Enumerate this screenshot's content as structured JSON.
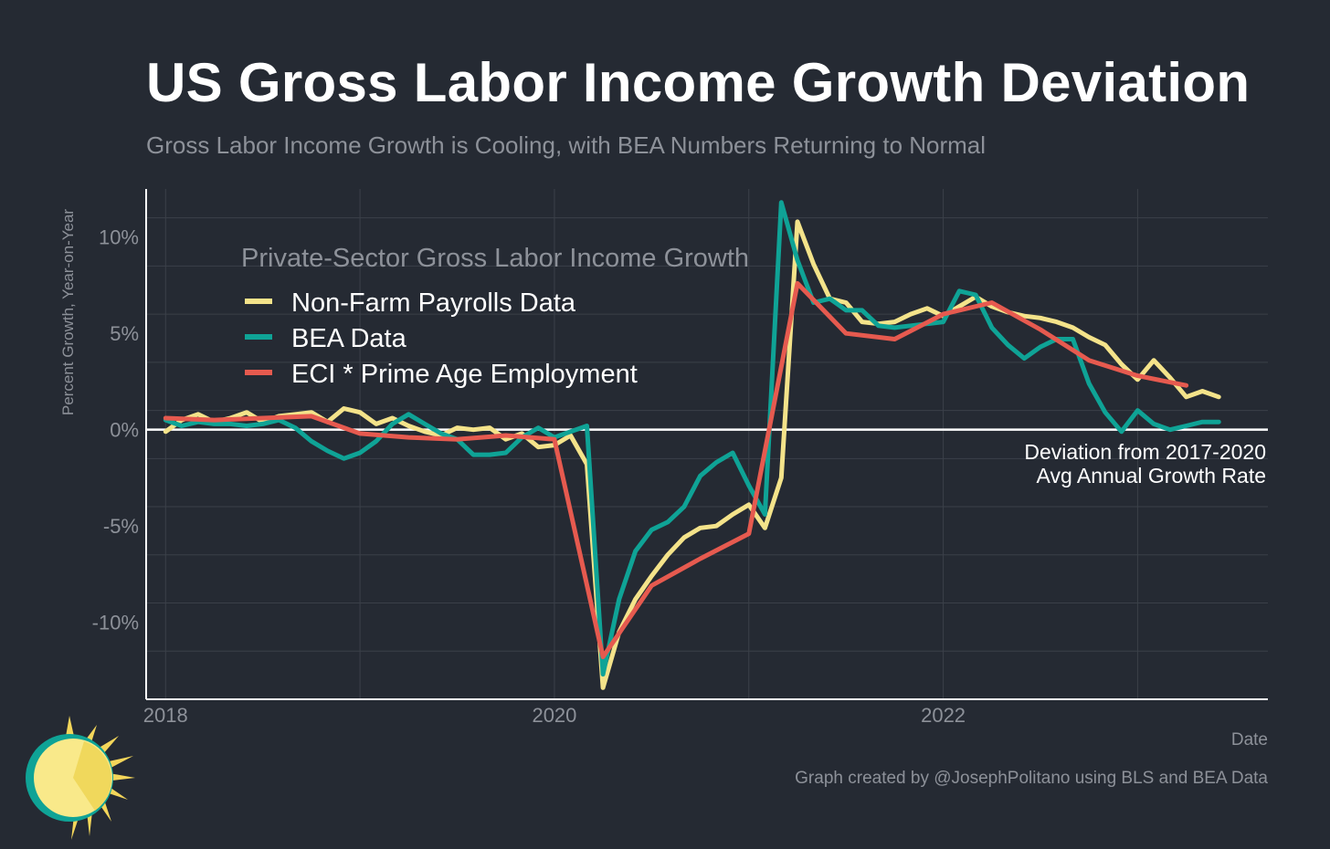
{
  "title": "US Gross Labor Income Growth Deviation",
  "subtitle": "Gross Labor Income Growth is Cooling, with BEA Numbers Returning to Normal",
  "caption": "Graph created by @JosephPolitano using BLS and BEA Data",
  "colors": {
    "background": "#252a33",
    "grid": "#3b4049",
    "text_muted": "#8d9199",
    "nfp": "#f4e38a",
    "bea": "#0fa396",
    "eci": "#e65a4f"
  },
  "chart_data": {
    "type": "line",
    "title": "US Gross Labor Income Growth Deviation",
    "subtitle": "Gross Labor Income Growth is Cooling, with BEA Numbers Returning to Normal",
    "xlabel": "Date",
    "ylabel": "Percent Growth, Year-on-Year",
    "xlim": [
      2017.9,
      2023.67
    ],
    "ylim": [
      -14,
      12.5
    ],
    "x_ticks": [
      2018,
      2020,
      2022
    ],
    "x_tick_labels": [
      "2018",
      "2020",
      "2022"
    ],
    "y_ticks": [
      10,
      5,
      0,
      -5,
      -10
    ],
    "y_tick_labels": [
      "10%",
      "5%",
      "0%",
      "-5%",
      "-10%"
    ],
    "grid": true,
    "legend": {
      "title": "Private-Sector Gross Labor Income Growth",
      "position": "top-left",
      "entries": [
        "Non-Farm Payrolls Data",
        "BEA Data",
        "ECI * Prime Age Employment"
      ]
    },
    "annotation": {
      "lines": [
        "Deviation from 2017-2020",
        "Avg Annual Growth Rate"
      ],
      "x": 2023.67,
      "y": 0
    },
    "series": [
      {
        "name": "Non-Farm Payrolls Data",
        "color": "#f4e38a",
        "x": [
          2018.0,
          2018.083,
          2018.167,
          2018.25,
          2018.333,
          2018.417,
          2018.5,
          2018.583,
          2018.667,
          2018.75,
          2018.833,
          2018.917,
          2019.0,
          2019.083,
          2019.167,
          2019.25,
          2019.333,
          2019.417,
          2019.5,
          2019.583,
          2019.667,
          2019.75,
          2019.833,
          2019.917,
          2020.0,
          2020.083,
          2020.167,
          2020.25,
          2020.333,
          2020.417,
          2020.5,
          2020.583,
          2020.667,
          2020.75,
          2020.833,
          2020.917,
          2021.0,
          2021.083,
          2021.167,
          2021.25,
          2021.333,
          2021.417,
          2021.5,
          2021.583,
          2021.667,
          2021.75,
          2021.833,
          2021.917,
          2022.0,
          2022.083,
          2022.167,
          2022.25,
          2022.333,
          2022.417,
          2022.5,
          2022.583,
          2022.667,
          2022.75,
          2022.833,
          2022.917,
          2023.0,
          2023.083,
          2023.167,
          2023.25,
          2023.333,
          2023.417
        ],
        "values": [
          -0.1,
          0.5,
          0.8,
          0.4,
          0.6,
          0.9,
          0.4,
          0.7,
          0.8,
          0.9,
          0.4,
          1.1,
          0.9,
          0.3,
          0.6,
          0.2,
          -0.1,
          -0.3,
          0.1,
          0.0,
          0.1,
          -0.5,
          -0.2,
          -0.9,
          -0.8,
          -0.3,
          -1.8,
          -13.4,
          -10.5,
          -8.8,
          -7.6,
          -6.5,
          -5.6,
          -5.1,
          -5.0,
          -4.4,
          -3.9,
          -5.1,
          -2.5,
          10.8,
          8.6,
          6.8,
          6.6,
          5.6,
          5.5,
          5.6,
          6.0,
          6.3,
          5.9,
          6.4,
          6.9,
          6.4,
          6.1,
          5.9,
          5.8,
          5.6,
          5.3,
          4.8,
          4.4,
          3.4,
          2.6,
          3.6,
          2.7,
          1.7,
          2.0,
          1.7
        ]
      },
      {
        "name": "BEA Data",
        "color": "#0fa396",
        "x": [
          2018.0,
          2018.083,
          2018.167,
          2018.25,
          2018.333,
          2018.417,
          2018.5,
          2018.583,
          2018.667,
          2018.75,
          2018.833,
          2018.917,
          2019.0,
          2019.083,
          2019.167,
          2019.25,
          2019.333,
          2019.417,
          2019.5,
          2019.583,
          2019.667,
          2019.75,
          2019.833,
          2019.917,
          2020.0,
          2020.083,
          2020.167,
          2020.25,
          2020.333,
          2020.417,
          2020.5,
          2020.583,
          2020.667,
          2020.75,
          2020.833,
          2020.917,
          2021.0,
          2021.083,
          2021.167,
          2021.25,
          2021.333,
          2021.417,
          2021.5,
          2021.583,
          2021.667,
          2021.75,
          2021.833,
          2021.917,
          2022.0,
          2022.083,
          2022.167,
          2022.25,
          2022.333,
          2022.417,
          2022.5,
          2022.583,
          2022.667,
          2022.75,
          2022.833,
          2022.917,
          2023.0,
          2023.083,
          2023.167,
          2023.25,
          2023.333,
          2023.417
        ],
        "values": [
          0.5,
          0.2,
          0.4,
          0.3,
          0.3,
          0.2,
          0.3,
          0.5,
          0.1,
          -0.6,
          -1.1,
          -1.5,
          -1.2,
          -0.6,
          0.3,
          0.8,
          0.3,
          -0.2,
          -0.5,
          -1.3,
          -1.3,
          -1.2,
          -0.4,
          0.1,
          -0.4,
          -0.1,
          0.2,
          -12.7,
          -8.8,
          -6.3,
          -5.2,
          -4.8,
          -4.0,
          -2.4,
          -1.7,
          -1.2,
          -2.9,
          -4.4,
          11.8,
          8.8,
          6.6,
          6.8,
          6.2,
          6.2,
          5.4,
          5.3,
          5.4,
          5.5,
          5.6,
          7.2,
          7.0,
          5.3,
          4.4,
          3.7,
          4.3,
          4.7,
          4.7,
          2.4,
          0.9,
          -0.1,
          1.0,
          0.3,
          0.0,
          0.2,
          0.4,
          0.4
        ]
      },
      {
        "name": "ECI * Prime Age Employment",
        "color": "#e65a4f",
        "x": [
          2018.0,
          2018.25,
          2018.5,
          2018.75,
          2019.0,
          2019.25,
          2019.5,
          2019.75,
          2020.0,
          2020.25,
          2020.5,
          2020.75,
          2021.0,
          2021.25,
          2021.5,
          2021.75,
          2022.0,
          2022.25,
          2022.5,
          2022.75,
          2023.0,
          2023.25
        ],
        "values": [
          0.6,
          0.5,
          0.6,
          0.7,
          -0.2,
          -0.4,
          -0.5,
          -0.3,
          -0.5,
          -11.8,
          -8.1,
          -6.7,
          -5.4,
          7.6,
          5.0,
          4.7,
          6.0,
          6.6,
          5.2,
          3.6,
          2.8,
          2.3
        ]
      }
    ]
  }
}
